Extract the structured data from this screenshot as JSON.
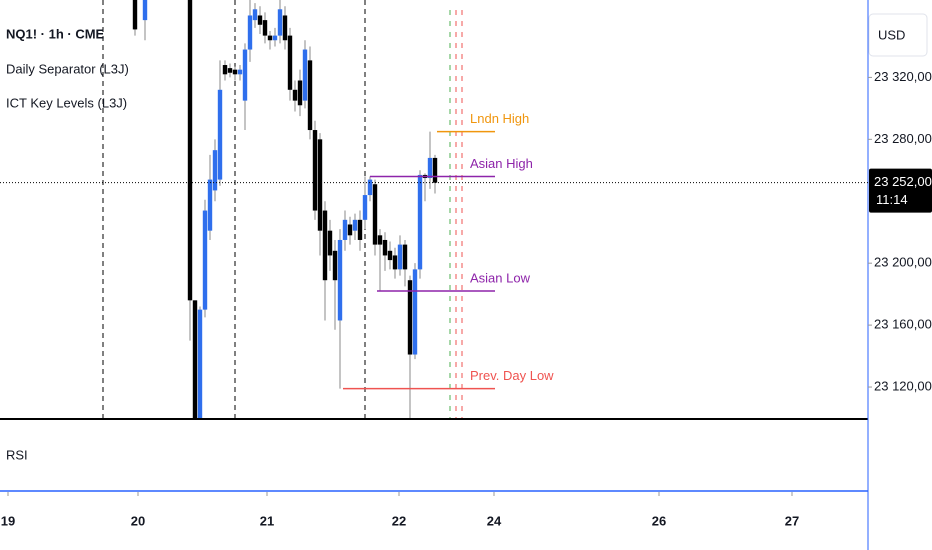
{
  "chart_data": {
    "type": "candlestick",
    "title": "NQ1! · 1h · CME",
    "indicators": [
      "Daily Separator (L3J)",
      "ICT Key Levels (L3J)"
    ],
    "pane_label": "RSI",
    "currency": "USD",
    "up_color": "#2f6fed",
    "down_color": "#000000",
    "xlim": [
      0,
      173.6
    ],
    "ylim": [
      23100,
      23370
    ],
    "xticks": [
      {
        "value": 1.6,
        "label": "19"
      },
      {
        "value": 27.6,
        "label": "20"
      },
      {
        "value": 53.4,
        "label": "21"
      },
      {
        "value": 79.8,
        "label": "22"
      },
      {
        "value": 98.8,
        "label": "24"
      },
      {
        "value": 131.8,
        "label": "26"
      },
      {
        "value": 158.4,
        "label": "27"
      }
    ],
    "yticks": [
      {
        "value": 23120,
        "label": "23 120,00"
      },
      {
        "value": 23160,
        "label": "23 160,00"
      },
      {
        "value": 23200,
        "label": "23 200,00"
      },
      {
        "value": 23280,
        "label": "23 280,00"
      },
      {
        "value": 23320,
        "label": "23 320,00"
      }
    ],
    "x": [
      27,
      29,
      38,
      39,
      40,
      41,
      42,
      43,
      44,
      45,
      46,
      47,
      48,
      49,
      50,
      51,
      52,
      53,
      54,
      55,
      56,
      57,
      58,
      59,
      60,
      61,
      62,
      63,
      64,
      65,
      66,
      67,
      68,
      69,
      70,
      71,
      72,
      73,
      74,
      75,
      76,
      77,
      78,
      79,
      80,
      81,
      82,
      83,
      84,
      85,
      86,
      87
    ],
    "open": [
      23370,
      23357,
      23370,
      23176,
      23100,
      23170,
      23221,
      23247,
      23254,
      23328,
      23326,
      23325,
      23322,
      23305,
      23338,
      23357,
      23360,
      23357,
      23347,
      23344,
      23347,
      23360,
      23347,
      23312,
      23318,
      23305,
      23331,
      23286,
      23280,
      23234,
      23221,
      23208,
      23163,
      23215,
      23225,
      23221,
      23228,
      23228,
      23244,
      23251,
      23218,
      23215,
      23208,
      23205,
      23196,
      23212,
      23189,
      23141,
      23196,
      23257,
      23255,
      23268
    ],
    "high": [
      23370,
      23370,
      23370,
      23176,
      23172,
      23241,
      23270,
      23280,
      23331,
      23331,
      23329,
      23327,
      23328,
      23342,
      23370,
      23368,
      23366,
      23362,
      23350,
      23352,
      23370,
      23366,
      23352,
      23318,
      23325,
      23344,
      23340,
      23292,
      23284,
      23240,
      23228,
      23215,
      23222,
      23234,
      23230,
      23232,
      23234,
      23256,
      23256,
      23254,
      23222,
      23220,
      23214,
      23210,
      23218,
      23215,
      23192,
      23200,
      23260,
      23258,
      23285,
      23270
    ],
    "low": [
      23347,
      23344,
      23150,
      23100,
      23100,
      23165,
      23215,
      23240,
      23250,
      23318,
      23320,
      23318,
      23318,
      23286,
      23330,
      23352,
      23348,
      23342,
      23338,
      23340,
      23342,
      23338,
      23305,
      23298,
      23295,
      23300,
      23280,
      23228,
      23205,
      23163,
      23195,
      23157,
      23119,
      23208,
      23212,
      23215,
      23208,
      23222,
      23240,
      23205,
      23182,
      23195,
      23196,
      23190,
      23192,
      23185,
      23100,
      23138,
      23190,
      23240,
      23248,
      23245
    ],
    "close": [
      23351,
      23370,
      23176,
      23100,
      23170,
      23234,
      23254,
      23273,
      23312,
      23322,
      23323,
      23322,
      23325,
      23338,
      23360,
      23364,
      23354,
      23347,
      23344,
      23347,
      23364,
      23344,
      23312,
      23305,
      23302,
      23338,
      23286,
      23234,
      23221,
      23189,
      23205,
      23189,
      23215,
      23228,
      23218,
      23228,
      23215,
      23244,
      23254,
      23212,
      23212,
      23205,
      23202,
      23196,
      23212,
      23196,
      23141,
      23196,
      23257,
      23255,
      23268,
      23252
    ],
    "levels": [
      {
        "label": "Lndn High",
        "color": "#f0960e",
        "value": 23285,
        "x": [
          87.4,
          99
        ]
      },
      {
        "label": "Asian High",
        "color": "#8e24aa",
        "value": 23256,
        "x": [
          74,
          99
        ]
      },
      {
        "label": "Asian Low",
        "color": "#8e24aa",
        "value": 23182,
        "x": [
          75.4,
          99
        ]
      },
      {
        "label": "Prev. Day Low",
        "color": "#ef5350",
        "value": 23119,
        "x": [
          68.6,
          99
        ]
      }
    ],
    "last_price": {
      "value": 23252,
      "label": "23 252,00"
    },
    "countdown": "11:14"
  }
}
